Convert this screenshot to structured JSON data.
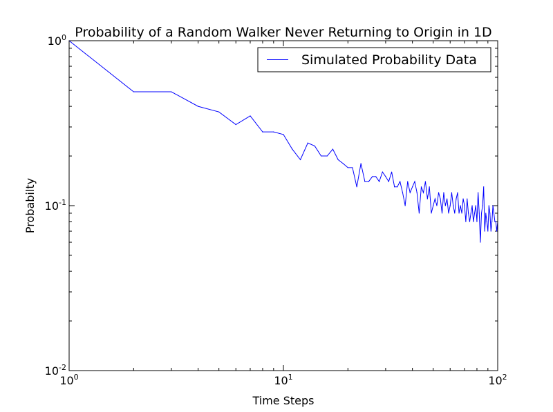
{
  "chart_data": {
    "type": "line",
    "title": "Probability of a Random Walker Never Returning to Origin in 1D",
    "xlabel": "Time Steps",
    "ylabel": "Probabilty",
    "xscale": "log",
    "yscale": "log",
    "xlim": [
      1,
      100
    ],
    "ylim": [
      0.01,
      1
    ],
    "x_ticks": [
      {
        "base": "10",
        "exp": "0"
      },
      {
        "base": "10",
        "exp": "1"
      },
      {
        "base": "10",
        "exp": "2"
      }
    ],
    "y_ticks": [
      {
        "base": "10",
        "exp": "-2"
      },
      {
        "base": "10",
        "exp": "-1"
      },
      {
        "base": "10",
        "exp": "0"
      }
    ],
    "grid": false,
    "legend": {
      "position": "top-right",
      "entries": [
        "Simulated Probability Data"
      ]
    },
    "series": [
      {
        "name": "Simulated Probability Data",
        "color": "#0000ff",
        "x": [
          1,
          2,
          3,
          4,
          5,
          6,
          7,
          8,
          9,
          10,
          11,
          12,
          13,
          14,
          15,
          16,
          17,
          18,
          19,
          20,
          21,
          22,
          23,
          24,
          25,
          26,
          27,
          28,
          29,
          30,
          31,
          32,
          33,
          34,
          35,
          36,
          37,
          38,
          39,
          40,
          41,
          42,
          43,
          44,
          45,
          46,
          47,
          48,
          49,
          50,
          51,
          52,
          53,
          54,
          55,
          56,
          57,
          58,
          59,
          60,
          61,
          62,
          63,
          64,
          65,
          66,
          67,
          68,
          69,
          70,
          71,
          72,
          73,
          74,
          75,
          76,
          77,
          78,
          79,
          80,
          81,
          82,
          83,
          84,
          85,
          86,
          87,
          88,
          89,
          90,
          91,
          92,
          93,
          94,
          95,
          96,
          97,
          98,
          99,
          100
        ],
        "y": [
          1.0,
          0.49,
          0.49,
          0.4,
          0.37,
          0.31,
          0.35,
          0.28,
          0.28,
          0.27,
          0.22,
          0.19,
          0.24,
          0.23,
          0.2,
          0.2,
          0.22,
          0.19,
          0.18,
          0.17,
          0.17,
          0.13,
          0.18,
          0.14,
          0.14,
          0.15,
          0.15,
          0.14,
          0.16,
          0.15,
          0.14,
          0.16,
          0.13,
          0.13,
          0.14,
          0.12,
          0.1,
          0.14,
          0.12,
          0.13,
          0.14,
          0.12,
          0.09,
          0.13,
          0.12,
          0.14,
          0.11,
          0.13,
          0.09,
          0.1,
          0.11,
          0.1,
          0.12,
          0.11,
          0.09,
          0.12,
          0.1,
          0.11,
          0.09,
          0.1,
          0.12,
          0.1,
          0.09,
          0.11,
          0.12,
          0.09,
          0.1,
          0.09,
          0.11,
          0.1,
          0.08,
          0.11,
          0.09,
          0.08,
          0.09,
          0.1,
          0.08,
          0.09,
          0.1,
          0.08,
          0.12,
          0.09,
          0.06,
          0.09,
          0.1,
          0.13,
          0.07,
          0.09,
          0.08,
          0.07,
          0.1,
          0.09,
          0.07,
          0.08,
          0.1,
          0.09,
          0.08,
          0.08,
          0.07,
          0.08
        ]
      }
    ]
  }
}
